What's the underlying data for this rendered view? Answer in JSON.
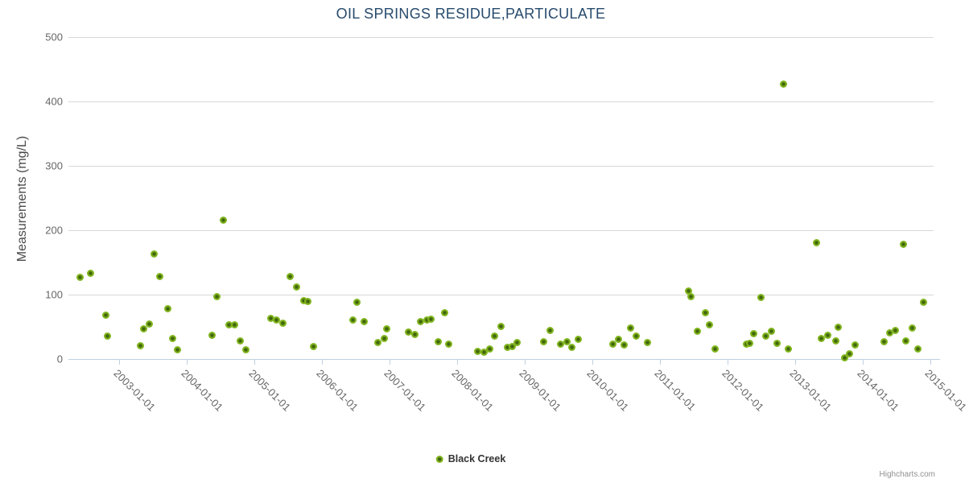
{
  "chart_data": {
    "type": "scatter",
    "title": "OIL SPRINGS RESIDUE,PARTICULATE",
    "xlabel": "",
    "ylabel": "Measurements (mg/L)",
    "ylim": [
      0,
      500
    ],
    "yticks": [
      0,
      100,
      200,
      300,
      400,
      500
    ],
    "xlim": [
      2002.25,
      2015.05
    ],
    "x_unit": "decimal_year",
    "xtick_positions": [
      2003,
      2004,
      2005,
      2006,
      2007,
      2008,
      2009,
      2010,
      2011,
      2012,
      2013,
      2014,
      2015
    ],
    "xtick_labels": [
      "2003-01-01",
      "2004-01-01",
      "2005-01-01",
      "2006-01-01",
      "2007-01-01",
      "2008-01-01",
      "2009-01-01",
      "2010-01-01",
      "2011-01-01",
      "2012-01-01",
      "2013-01-01",
      "2014-01-01",
      "2015-01-01"
    ],
    "grid": "horizontal-only",
    "legend_position": "bottom-center",
    "series": [
      {
        "name": "Black Creek",
        "color": "#8bbc21",
        "marker_center_color": "#44660d",
        "points": [
          [
            2002.42,
            126
          ],
          [
            2002.58,
            133
          ],
          [
            2002.8,
            68
          ],
          [
            2002.83,
            35
          ],
          [
            2003.31,
            20
          ],
          [
            2003.36,
            46
          ],
          [
            2003.45,
            54
          ],
          [
            2003.52,
            163
          ],
          [
            2003.6,
            128
          ],
          [
            2003.72,
            77
          ],
          [
            2003.79,
            31
          ],
          [
            2003.86,
            14
          ],
          [
            2004.38,
            36
          ],
          [
            2004.45,
            96
          ],
          [
            2004.54,
            215
          ],
          [
            2004.62,
            53
          ],
          [
            2004.71,
            53
          ],
          [
            2004.79,
            28
          ],
          [
            2004.87,
            14
          ],
          [
            2005.25,
            62
          ],
          [
            2005.33,
            60
          ],
          [
            2005.42,
            55
          ],
          [
            2005.53,
            128
          ],
          [
            2005.63,
            112
          ],
          [
            2005.73,
            90
          ],
          [
            2005.79,
            89
          ],
          [
            2005.88,
            19
          ],
          [
            2006.46,
            60
          ],
          [
            2006.52,
            87
          ],
          [
            2006.62,
            58
          ],
          [
            2006.83,
            25
          ],
          [
            2006.92,
            31
          ],
          [
            2006.96,
            46
          ],
          [
            2007.28,
            41
          ],
          [
            2007.37,
            38
          ],
          [
            2007.46,
            58
          ],
          [
            2007.56,
            60
          ],
          [
            2007.62,
            61
          ],
          [
            2007.72,
            26
          ],
          [
            2007.82,
            71
          ],
          [
            2007.88,
            22
          ],
          [
            2008.31,
            11
          ],
          [
            2008.4,
            10
          ],
          [
            2008.48,
            15
          ],
          [
            2008.56,
            35
          ],
          [
            2008.65,
            50
          ],
          [
            2008.74,
            18
          ],
          [
            2008.82,
            19
          ],
          [
            2008.89,
            25
          ],
          [
            2009.28,
            26
          ],
          [
            2009.38,
            44
          ],
          [
            2009.53,
            22
          ],
          [
            2009.63,
            26
          ],
          [
            2009.7,
            17
          ],
          [
            2009.79,
            30
          ],
          [
            2010.31,
            22
          ],
          [
            2010.39,
            30
          ],
          [
            2010.47,
            21
          ],
          [
            2010.57,
            48
          ],
          [
            2010.65,
            35
          ],
          [
            2010.82,
            25
          ],
          [
            2011.42,
            105
          ],
          [
            2011.46,
            96
          ],
          [
            2011.56,
            43
          ],
          [
            2011.67,
            71
          ],
          [
            2011.73,
            53
          ],
          [
            2011.82,
            15
          ],
          [
            2012.28,
            22
          ],
          [
            2012.33,
            24
          ],
          [
            2012.39,
            39
          ],
          [
            2012.49,
            95
          ],
          [
            2012.57,
            35
          ],
          [
            2012.65,
            43
          ],
          [
            2012.74,
            24
          ],
          [
            2012.83,
            427
          ],
          [
            2012.9,
            15
          ],
          [
            2013.32,
            180
          ],
          [
            2013.39,
            31
          ],
          [
            2013.48,
            36
          ],
          [
            2013.6,
            27
          ],
          [
            2013.64,
            49
          ],
          [
            2013.73,
            1
          ],
          [
            2013.81,
            7
          ],
          [
            2013.89,
            21
          ],
          [
            2014.32,
            26
          ],
          [
            2014.4,
            40
          ],
          [
            2014.49,
            44
          ],
          [
            2014.6,
            178
          ],
          [
            2014.64,
            27
          ],
          [
            2014.74,
            47
          ],
          [
            2014.82,
            15
          ],
          [
            2014.9,
            88
          ]
        ]
      }
    ]
  },
  "legend": {
    "label": "Black Creek"
  },
  "credits": {
    "label": "Highcharts.com"
  }
}
